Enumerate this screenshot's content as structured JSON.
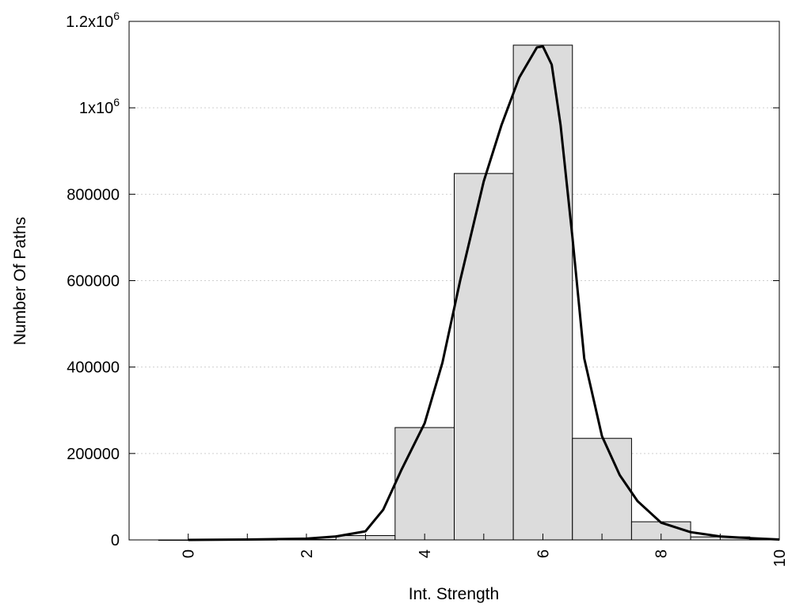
{
  "chart_data": {
    "type": "bar",
    "title": "",
    "xlabel": "Int. Strength",
    "ylabel": "Number Of Paths",
    "xlim": [
      -1,
      10
    ],
    "ylim": [
      0,
      1200000
    ],
    "grid": "horizontal dotted",
    "x_ticks": [
      {
        "value": 0,
        "label": "0"
      },
      {
        "value": 2,
        "label": "2"
      },
      {
        "value": 4,
        "label": "4"
      },
      {
        "value": 6,
        "label": "6"
      },
      {
        "value": 8,
        "label": "8"
      },
      {
        "value": 10,
        "label": "10"
      }
    ],
    "y_ticks": [
      {
        "value": 0,
        "base": "0",
        "exp": ""
      },
      {
        "value": 200000,
        "base": "200000",
        "exp": ""
      },
      {
        "value": 400000,
        "base": "400000",
        "exp": ""
      },
      {
        "value": 600000,
        "base": "600000",
        "exp": ""
      },
      {
        "value": 800000,
        "base": "800000",
        "exp": ""
      },
      {
        "value": 1000000,
        "base": "1x10",
        "exp": "6"
      },
      {
        "value": 1200000,
        "base": "1.2x10",
        "exp": "6"
      }
    ],
    "bar_width": 1,
    "bars": [
      {
        "x": 0,
        "value": 0
      },
      {
        "x": 1,
        "value": 500
      },
      {
        "x": 2,
        "value": 1000
      },
      {
        "x": 3,
        "value": 10000
      },
      {
        "x": 4,
        "value": 260000
      },
      {
        "x": 5,
        "value": 848000
      },
      {
        "x": 6,
        "value": 1145000
      },
      {
        "x": 7,
        "value": 235000
      },
      {
        "x": 8,
        "value": 42000
      },
      {
        "x": 9,
        "value": 7000
      },
      {
        "x": 10,
        "value": 1000
      }
    ],
    "curve": {
      "x": [
        0,
        1,
        2,
        2.5,
        3,
        3.3,
        3.6,
        4,
        4.3,
        4.6,
        5,
        5.3,
        5.6,
        5.9,
        6,
        6.15,
        6.3,
        6.5,
        6.7,
        7,
        7.3,
        7.6,
        8,
        8.5,
        9,
        9.5,
        10
      ],
      "y": [
        0,
        1000,
        3000,
        8000,
        20000,
        70000,
        160000,
        270000,
        410000,
        600000,
        830000,
        960000,
        1070000,
        1140000,
        1142000,
        1100000,
        960000,
        700000,
        420000,
        240000,
        150000,
        90000,
        40000,
        18000,
        8000,
        4000,
        1000
      ]
    }
  }
}
